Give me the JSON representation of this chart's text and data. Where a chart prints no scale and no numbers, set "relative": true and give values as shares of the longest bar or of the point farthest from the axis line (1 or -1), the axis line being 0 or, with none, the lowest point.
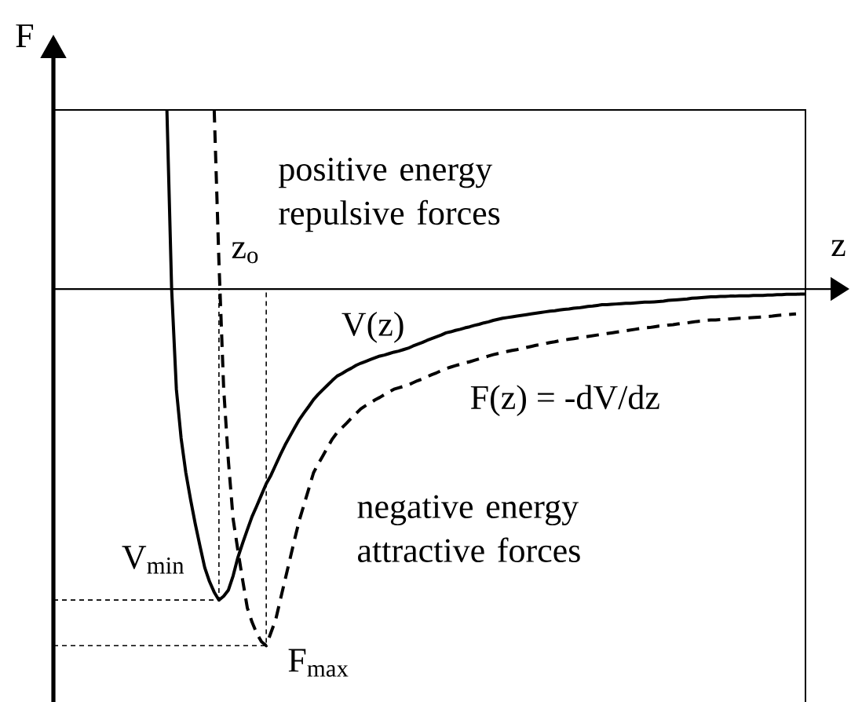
{
  "chart_data": {
    "type": "line",
    "xlabel": "z",
    "ylabel": "F",
    "relative": true,
    "categories": [
      null,
      null,
      null,
      null,
      null,
      null,
      null,
      null,
      null,
      null,
      null,
      null,
      null,
      null,
      null,
      null,
      null,
      null,
      null,
      null,
      null,
      null,
      null,
      null,
      null,
      null,
      null,
      null,
      null,
      null,
      null,
      null,
      null,
      null,
      null,
      null,
      null,
      null,
      null,
      null,
      null,
      null,
      null,
      null,
      null,
      null,
      null,
      null,
      null,
      null,
      null,
      null,
      null,
      null,
      null,
      null,
      null,
      null,
      null,
      null,
      null,
      null,
      null,
      null,
      null,
      null,
      null,
      null,
      null,
      null,
      null,
      null,
      null,
      null,
      null,
      null,
      null,
      null,
      null,
      null,
      null,
      null,
      null,
      null,
      null,
      null,
      null,
      null,
      null,
      null,
      null,
      null,
      null,
      null,
      null,
      null,
      null,
      null,
      null,
      null,
      null,
      null,
      null,
      null,
      null,
      null,
      null,
      null,
      null,
      null,
      null,
      null,
      null,
      null,
      null,
      null,
      null,
      null,
      null,
      null,
      null,
      null,
      null,
      null,
      null,
      null,
      null,
      null,
      null,
      null,
      null,
      null,
      null,
      null,
      null,
      null,
      null,
      null,
      null,
      null,
      null,
      null,
      null,
      null,
      null,
      null,
      null,
      null,
      null,
      null,
      null,
      null,
      null,
      null,
      null,
      null,
      null,
      null,
      null,
      null
    ],
    "annotations": [
      "positive energy repulsive forces",
      "negative energy attractive forces",
      "z$_{o}$",
      {
        "text": "V$_{min}$",
        "y": -0.872
      },
      "F$_{max}$"
    ],
    "series": [
      {
        "name": "V(z)",
        "color": "#000000",
        "line_style": "solid",
        "values": [
          null,
          null,
          null,
          null,
          null,
          null,
          null,
          null,
          null,
          null,
          null,
          null,
          null,
          null,
          null,
          null,
          null,
          null,
          null,
          null,
          null,
          null,
          null,
          null,
          0.502,
          0,
          -0.281,
          -0.418,
          -0.515,
          -0.59,
          -0.659,
          -0.721,
          -0.781,
          -0.82,
          -0.85,
          -0.872,
          -0.861,
          -0.844,
          -0.804,
          -0.753,
          -0.713,
          -0.675,
          -0.638,
          -0.608,
          -0.577,
          -0.546,
          -0.522,
          -0.493,
          -0.464,
          -0.437,
          -0.413,
          -0.389,
          -0.366,
          -0.347,
          -0.329,
          -0.31,
          -0.295,
          -0.282,
          -0.269,
          -0.256,
          -0.244,
          -0.237,
          -0.229,
          -0.222,
          -0.214,
          -0.208,
          -0.203,
          -0.198,
          -0.193,
          -0.188,
          -0.185,
          -0.181,
          -0.177,
          -0.174,
          -0.17,
          -0.166,
          -0.16,
          -0.155,
          -0.15,
          -0.144,
          -0.139,
          -0.134,
          -0.129,
          -0.123,
          -0.12,
          -0.116,
          -0.113,
          -0.109,
          -0.106,
          -0.102,
          -0.099,
          -0.095,
          -0.092,
          -0.088,
          -0.085,
          -0.082,
          -0.08,
          -0.078,
          -0.076,
          -0.074,
          -0.072,
          -0.07,
          -0.068,
          -0.066,
          -0.064,
          -0.062,
          -0.061,
          -0.059,
          -0.057,
          -0.056,
          -0.054,
          -0.053,
          -0.051,
          -0.049,
          -0.048,
          -0.046,
          -0.044,
          -0.044,
          -0.043,
          -0.042,
          -0.041,
          -0.04,
          -0.04,
          -0.039,
          -0.038,
          -0.037,
          -0.037,
          -0.036,
          -0.035,
          -0.034,
          -0.032,
          -0.031,
          -0.03,
          -0.029,
          -0.028,
          -0.026,
          -0.025,
          -0.024,
          -0.023,
          -0.022,
          -0.022,
          -0.021,
          -0.021,
          -0.02,
          -0.02,
          -0.019,
          -0.019,
          -0.019,
          -0.018,
          -0.018,
          -0.018,
          -0.017,
          -0.017,
          -0.016,
          -0.016,
          -0.015,
          -0.015,
          -0.015,
          -0.014,
          -0.014
        ]
      },
      {
        "name": "F(z) = -dV/dz",
        "color": "#000000",
        "line_style": "dashed",
        "values": [
          null,
          null,
          null,
          null,
          null,
          null,
          null,
          null,
          null,
          null,
          null,
          null,
          null,
          null,
          null,
          null,
          null,
          null,
          null,
          null,
          null,
          null,
          null,
          null,
          null,
          null,
          null,
          null,
          null,
          null,
          null,
          null,
          null,
          null,
          0.502,
          0.075,
          -0.279,
          -0.482,
          -0.645,
          -0.732,
          -0.815,
          -0.894,
          -0.934,
          -0.966,
          -0.989,
          -1,
          -0.963,
          -0.927,
          -0.87,
          -0.814,
          -0.758,
          -0.702,
          -0.648,
          -0.604,
          -0.56,
          -0.515,
          -0.49,
          -0.467,
          -0.443,
          -0.42,
          -0.402,
          -0.389,
          -0.376,
          -0.362,
          -0.349,
          -0.336,
          -0.327,
          -0.319,
          -0.311,
          -0.304,
          -0.296,
          -0.288,
          -0.281,
          -0.277,
          -0.273,
          -0.269,
          -0.263,
          -0.257,
          -0.252,
          -0.246,
          -0.24,
          -0.235,
          -0.229,
          -0.223,
          -0.219,
          -0.215,
          -0.211,
          -0.207,
          -0.204,
          -0.2,
          -0.196,
          -0.192,
          -0.188,
          -0.184,
          -0.181,
          -0.178,
          -0.175,
          -0.172,
          -0.17,
          -0.167,
          -0.164,
          -0.161,
          -0.158,
          -0.156,
          -0.153,
          -0.15,
          -0.148,
          -0.145,
          -0.143,
          -0.141,
          -0.139,
          -0.137,
          -0.135,
          -0.133,
          -0.131,
          -0.129,
          -0.127,
          -0.125,
          -0.123,
          -0.121,
          -0.119,
          -0.117,
          -0.115,
          -0.113,
          -0.111,
          -0.109,
          -0.108,
          -0.106,
          -0.104,
          -0.103,
          -0.101,
          -0.1,
          -0.098,
          -0.096,
          -0.095,
          -0.093,
          -0.091,
          -0.09,
          -0.088,
          -0.087,
          -0.087,
          -0.086,
          -0.085,
          -0.084,
          -0.083,
          -0.082,
          -0.082,
          -0.081,
          -0.08,
          -0.079,
          -0.078,
          -0.077,
          -0.076,
          -0.074,
          -0.073,
          -0.072,
          -0.071,
          -0.07,
          null,
          null
        ]
      },
      {
        "type": "step",
        "color": "#000000",
        "line_style": "dotted",
        "values": [
          -0.872,
          -0.872,
          -0.872,
          -0.872,
          -0.872,
          -0.872,
          -0.872,
          -0.872,
          -0.872,
          -0.872,
          -0.872,
          -0.872,
          -0.872,
          -0.872,
          -0.872,
          -0.872,
          -0.872,
          -0.872,
          -0.872,
          -0.872,
          -0.872,
          -0.872,
          -0.872,
          -0.872,
          -0.872,
          -0.872,
          -0.872,
          -0.872,
          -0.872,
          -0.872,
          -0.872,
          -0.872,
          -0.872,
          -0.872,
          -0.872,
          0,
          null,
          null,
          null,
          null,
          null,
          null,
          null,
          null,
          null,
          null,
          null,
          null,
          null,
          null,
          null,
          null,
          null,
          null,
          null,
          null,
          null,
          null,
          null,
          null,
          null,
          null,
          null,
          null,
          null,
          null,
          null,
          null,
          null,
          null,
          null,
          null,
          null,
          null,
          null,
          null,
          null,
          null,
          null,
          null,
          null,
          null,
          null,
          null,
          null,
          null,
          null,
          null,
          null,
          null,
          null,
          null,
          null,
          null,
          null,
          null,
          null,
          null,
          null,
          null,
          null,
          null,
          null,
          null,
          null,
          null,
          null,
          null,
          null,
          null,
          null,
          null,
          null,
          null,
          null,
          null,
          null,
          null,
          null,
          null,
          null,
          null,
          null,
          null,
          null,
          null,
          null,
          null,
          null,
          null,
          null,
          null,
          null,
          null,
          null,
          null,
          null,
          null,
          null,
          null,
          null,
          null,
          null,
          null,
          null,
          null,
          null,
          null,
          null,
          null,
          null,
          null,
          null,
          null,
          null,
          null,
          null,
          null,
          null,
          null
        ]
      },
      {
        "type": "step",
        "color": "#000000",
        "line_style": "dotted",
        "values": [
          -1,
          -1,
          -1,
          -1,
          -1,
          -1,
          -1,
          -1,
          -1,
          -1,
          -1,
          -1,
          -1,
          -1,
          -1,
          -1,
          -1,
          -1,
          -1,
          -1,
          -1,
          -1,
          -1,
          -1,
          -1,
          -1,
          -1,
          -1,
          -1,
          -1,
          -1,
          -1,
          -1,
          -1,
          -1,
          -1,
          -1,
          -1,
          -1,
          -1,
          -1,
          -1,
          -1,
          -1,
          -1,
          0,
          null,
          null,
          null,
          null,
          null,
          null,
          null,
          null,
          null,
          null,
          null,
          null,
          null,
          null,
          null,
          null,
          null,
          null,
          null,
          null,
          null,
          null,
          null,
          null,
          null,
          null,
          null,
          null,
          null,
          null,
          null,
          null,
          null,
          null,
          null,
          null,
          null,
          null,
          null,
          null,
          null,
          null,
          null,
          null,
          null,
          null,
          null,
          null,
          null,
          null,
          null,
          null,
          null,
          null,
          null,
          null,
          null,
          null,
          null,
          null,
          null,
          null,
          null,
          null,
          null,
          null,
          null,
          null,
          null,
          null,
          null,
          null,
          null,
          null,
          null,
          null,
          null,
          null,
          null,
          null,
          null,
          null,
          null,
          null,
          null,
          null,
          null,
          null,
          null,
          null,
          null,
          null,
          null,
          null,
          null,
          null,
          null,
          null,
          null,
          null,
          null,
          null,
          null,
          null,
          null,
          null,
          null,
          null,
          null,
          null,
          null,
          null,
          null,
          null
        ]
      }
    ]
  }
}
